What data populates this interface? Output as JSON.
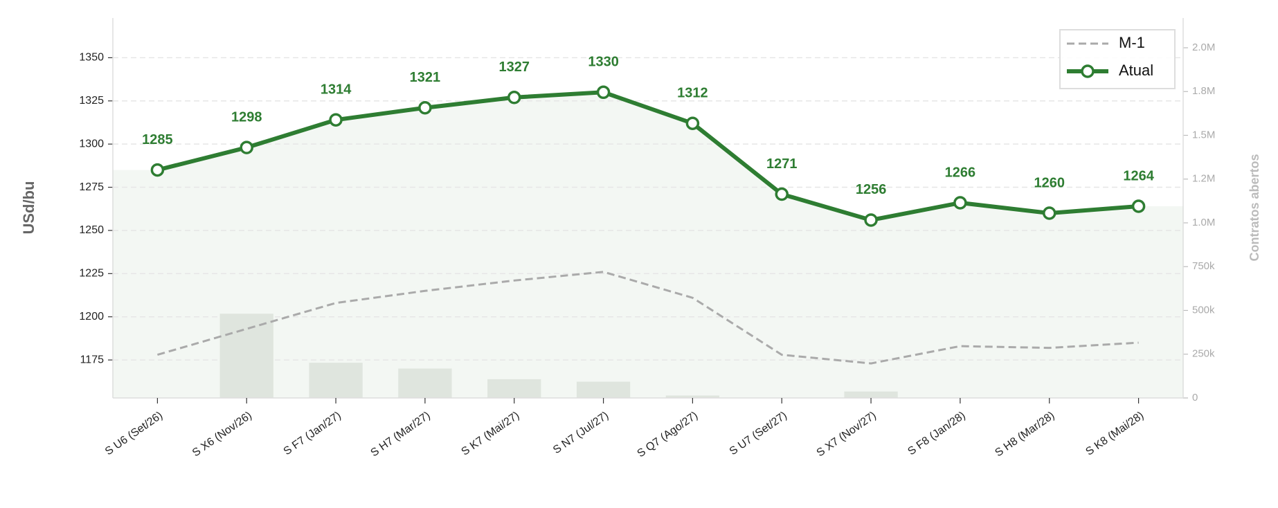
{
  "chart_data": {
    "type": "line",
    "y_label": "USd/bu",
    "y2_label": "Contratos abertos",
    "categories": [
      "S U6 (Set/26)",
      "S X6 (Nov/26)",
      "S F7 (Jan/27)",
      "S H7 (Mar/27)",
      "S K7 (Mai/27)",
      "S N7 (Jul/27)",
      "S Q7 (Ago/27)",
      "S U7 (Set/27)",
      "S X7 (Nov/27)",
      "S F8 (Jan/28)",
      "S H8 (Mar/28)",
      "S K8 (Mai/28)"
    ],
    "series": [
      {
        "name": "M-1",
        "color": "#aaaaaa",
        "dashed": true,
        "values": [
          1178,
          1193,
          1208,
          1215,
          1221,
          1226,
          1211,
          1178,
          1173,
          1183,
          1182,
          1185
        ]
      },
      {
        "name": "Atual",
        "color": "#2e7d32",
        "dashed": false,
        "values": [
          1285,
          1298,
          1314,
          1321,
          1327,
          1330,
          1312,
          1271,
          1256,
          1266,
          1260,
          1264
        ]
      }
    ],
    "bars": {
      "axis": "y2",
      "color": "#dfe5de",
      "values": [
        0,
        481000,
        201000,
        168000,
        107000,
        93000,
        14000,
        0,
        37000,
        0,
        0,
        0
      ]
    },
    "ylim": [
      1153,
      1373
    ],
    "yticks": [
      1175,
      1200,
      1225,
      1250,
      1275,
      1300,
      1325,
      1350
    ],
    "y2lim": [
      0,
      2170000
    ],
    "y2ticks": [
      0,
      {
        "value": 250000,
        "label": "250k"
      },
      {
        "value": 500000,
        "label": "500k"
      },
      {
        "value": 750000,
        "label": "750k"
      },
      {
        "value": 1000000,
        "label": "1.0M"
      },
      {
        "value": 1250000,
        "label": "1.2M"
      },
      {
        "value": 1500000,
        "label": "1.5M"
      },
      {
        "value": 1750000,
        "label": "1.8M"
      },
      {
        "value": 2000000,
        "label": "2.0M"
      }
    ],
    "grid": true,
    "legend": "upper right"
  }
}
